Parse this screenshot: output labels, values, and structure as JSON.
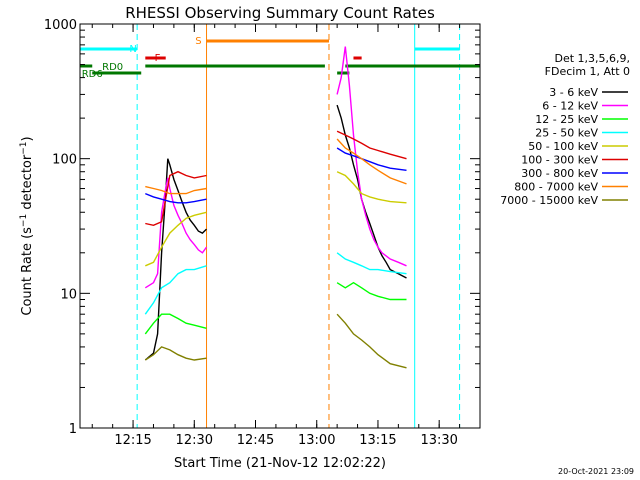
{
  "chart_data": {
    "type": "line",
    "title": "RHESSI Observing Summary Count Rates",
    "xlabel": "Start Time (21-Nov-12 12:02:22)",
    "ylabel": "Count Rate (s⁻¹ detector⁻¹)",
    "ylabel_main": "Count Rate (s",
    "ylabel_sup1": "−1",
    "ylabel_mid": " detector",
    "ylabel_sup2": "−1",
    "ylabel_end": ")",
    "y_scale": "log",
    "ylim": [
      1,
      1000
    ],
    "xlim": [
      "12:02",
      "13:40"
    ],
    "x_ticks": [
      "12:15",
      "12:30",
      "12:45",
      "13:00",
      "13:15",
      "13:30"
    ],
    "y_ticks": [
      {
        "value": 1,
        "label": "1"
      },
      {
        "value": 10,
        "label": "10"
      },
      {
        "value": 100,
        "label": "100"
      },
      {
        "value": 1000,
        "label": "1000"
      }
    ],
    "legend": {
      "placement": "right",
      "header": [
        "Det 1,3,5,6,9,",
        "FDecim 1, Att 0"
      ],
      "entries": [
        {
          "label": "3 - 6 keV",
          "color": "#000000"
        },
        {
          "label": "6 - 12 keV",
          "color": "#ff00ff"
        },
        {
          "label": "12 - 25 keV",
          "color": "#00ff00"
        },
        {
          "label": "25 - 50 keV",
          "color": "#00ffff"
        },
        {
          "label": "50 - 100 keV",
          "color": "#cccc00"
        },
        {
          "label": "100 - 300 keV",
          "color": "#dd0000"
        },
        {
          "label": "300 - 800 keV",
          "color": "#0000ff"
        },
        {
          "label": "800 - 7000 keV",
          "color": "#ff8000"
        },
        {
          "label": "7000 - 15000 keV",
          "color": "#808000"
        }
      ]
    },
    "flag_labels": [
      {
        "label": "N",
        "color": "#00ffff",
        "x": "12:15",
        "spans": [
          [
            "12:02",
            "12:16"
          ],
          [
            "13:24",
            "13:35"
          ]
        ]
      },
      {
        "label": "F",
        "color": "#dd0000",
        "x": "12:21",
        "spans": [
          [
            "12:18",
            "12:23"
          ],
          [
            "13:09",
            "13:11"
          ]
        ]
      },
      {
        "label": "S",
        "color": "#ff8000",
        "x": "12:31",
        "spans": [
          [
            "12:33",
            "13:03"
          ]
        ]
      },
      {
        "label": "RD0",
        "color": "#007700",
        "x": "12:10",
        "spans": [
          [
            "12:02",
            "12:05"
          ],
          [
            "12:18",
            "13:02"
          ],
          [
            "13:07",
            "13:40"
          ]
        ]
      },
      {
        "label": "RD6",
        "color": "#007700",
        "x": "12:05",
        "spans": [
          [
            "12:05",
            "12:17"
          ],
          [
            "13:05",
            "13:08"
          ]
        ]
      }
    ],
    "vertical_markers": [
      {
        "x": "12:02",
        "color": "#00ffff",
        "style": "solid"
      },
      {
        "x": "12:16",
        "color": "#00ffff",
        "style": "dashed"
      },
      {
        "x": "12:33",
        "color": "#ff8000",
        "style": "solid"
      },
      {
        "x": "13:03",
        "color": "#ff8000",
        "style": "dashed"
      },
      {
        "x": "13:24",
        "color": "#00ffff",
        "style": "solid"
      },
      {
        "x": "13:35",
        "color": "#00ffff",
        "style": "dashed"
      }
    ],
    "orbit_segments": [
      {
        "x_start": "12:18",
        "x_end": "12:33",
        "series": [
          {
            "label": "3 - 6 keV",
            "points": [
              [
                "12:18",
                3.2
              ],
              [
                "12:20",
                3.6
              ],
              [
                "12:21",
                5
              ],
              [
                "12:22",
                20
              ],
              [
                "12:23",
                55
              ],
              [
                "12:23.5",
                100
              ],
              [
                "12:24",
                90
              ],
              [
                "12:25",
                70
              ],
              [
                "12:26",
                58
              ],
              [
                "12:27",
                48
              ],
              [
                "12:28",
                40
              ],
              [
                "12:29",
                35
              ],
              [
                "12:30",
                32
              ],
              [
                "12:31",
                29
              ],
              [
                "12:32",
                28
              ],
              [
                "12:33",
                30
              ]
            ]
          },
          {
            "label": "6 - 12 keV",
            "points": [
              [
                "12:18",
                11
              ],
              [
                "12:20",
                12
              ],
              [
                "12:21",
                14
              ],
              [
                "12:22",
                40
              ],
              [
                "12:23",
                60
              ],
              [
                "12:23.5",
                72
              ],
              [
                "12:24",
                60
              ],
              [
                "12:25",
                45
              ],
              [
                "12:26",
                38
              ],
              [
                "12:27",
                33
              ],
              [
                "12:28",
                28
              ],
              [
                "12:29",
                25
              ],
              [
                "12:30",
                23
              ],
              [
                "12:31",
                21
              ],
              [
                "12:32",
                20
              ],
              [
                "12:33",
                22
              ]
            ]
          },
          {
            "label": "12 - 25 keV",
            "points": [
              [
                "12:18",
                5
              ],
              [
                "12:20",
                6
              ],
              [
                "12:22",
                7
              ],
              [
                "12:24",
                7
              ],
              [
                "12:26",
                6.5
              ],
              [
                "12:28",
                6
              ],
              [
                "12:30",
                5.8
              ],
              [
                "12:33",
                5.5
              ]
            ]
          },
          {
            "label": "25 - 50 keV",
            "points": [
              [
                "12:18",
                7
              ],
              [
                "12:20",
                8.5
              ],
              [
                "12:22",
                11
              ],
              [
                "12:24",
                12
              ],
              [
                "12:26",
                14
              ],
              [
                "12:28",
                15
              ],
              [
                "12:30",
                15
              ],
              [
                "12:33",
                16
              ]
            ]
          },
          {
            "label": "50 - 100 keV",
            "points": [
              [
                "12:18",
                16
              ],
              [
                "12:20",
                17
              ],
              [
                "12:22",
                22
              ],
              [
                "12:24",
                28
              ],
              [
                "12:26",
                32
              ],
              [
                "12:28",
                36
              ],
              [
                "12:30",
                38
              ],
              [
                "12:33",
                40
              ]
            ]
          },
          {
            "label": "100 - 300 keV",
            "points": [
              [
                "12:18",
                33
              ],
              [
                "12:20",
                32
              ],
              [
                "12:22",
                34
              ],
              [
                "12:24",
                75
              ],
              [
                "12:26",
                80
              ],
              [
                "12:28",
                75
              ],
              [
                "12:30",
                72
              ],
              [
                "12:33",
                75
              ]
            ]
          },
          {
            "label": "300 - 800 keV",
            "points": [
              [
                "12:18",
                55
              ],
              [
                "12:20",
                52
              ],
              [
                "12:22",
                50
              ],
              [
                "12:24",
                48
              ],
              [
                "12:26",
                47
              ],
              [
                "12:28",
                47
              ],
              [
                "12:30",
                48
              ],
              [
                "12:33",
                50
              ]
            ]
          },
          {
            "label": "800 - 7000 keV",
            "points": [
              [
                "12:18",
                62
              ],
              [
                "12:20",
                60
              ],
              [
                "12:22",
                58
              ],
              [
                "12:24",
                55
              ],
              [
                "12:26",
                55
              ],
              [
                "12:28",
                55
              ],
              [
                "12:30",
                58
              ],
              [
                "12:33",
                60
              ]
            ]
          },
          {
            "label": "7000 - 15000 keV",
            "points": [
              [
                "12:18",
                3.2
              ],
              [
                "12:20",
                3.5
              ],
              [
                "12:22",
                4
              ],
              [
                "12:24",
                3.8
              ],
              [
                "12:26",
                3.5
              ],
              [
                "12:28",
                3.3
              ],
              [
                "12:30",
                3.2
              ],
              [
                "12:33",
                3.3
              ]
            ]
          }
        ]
      },
      {
        "x_start": "13:05",
        "x_end": "13:22",
        "series": [
          {
            "label": "3 - 6 keV",
            "points": [
              [
                "13:05",
                250
              ],
              [
                "13:06",
                200
              ],
              [
                "13:07",
                150
              ],
              [
                "13:08",
                120
              ],
              [
                "13:09",
                90
              ],
              [
                "13:10",
                70
              ],
              [
                "13:11",
                50
              ],
              [
                "13:12",
                40
              ],
              [
                "13:13",
                33
              ],
              [
                "13:14",
                27
              ],
              [
                "13:15",
                22
              ],
              [
                "13:16",
                19
              ],
              [
                "13:17",
                17
              ],
              [
                "13:18",
                15
              ],
              [
                "13:20",
                14
              ],
              [
                "13:22",
                13
              ]
            ]
          },
          {
            "label": "6 - 12 keV",
            "points": [
              [
                "13:05",
                300
              ],
              [
                "13:06",
                400
              ],
              [
                "13:07",
                680
              ],
              [
                "13:08",
                350
              ],
              [
                "13:09",
                150
              ],
              [
                "13:10",
                80
              ],
              [
                "13:11",
                50
              ],
              [
                "13:12",
                38
              ],
              [
                "13:13",
                30
              ],
              [
                "13:14",
                25
              ],
              [
                "13:15",
                22
              ],
              [
                "13:16",
                20
              ],
              [
                "13:18",
                18
              ],
              [
                "13:20",
                17
              ],
              [
                "13:22",
                16
              ]
            ]
          },
          {
            "label": "12 - 25 keV",
            "points": [
              [
                "13:05",
                12
              ],
              [
                "13:07",
                11
              ],
              [
                "13:09",
                12
              ],
              [
                "13:11",
                11
              ],
              [
                "13:13",
                10
              ],
              [
                "13:15",
                9.5
              ],
              [
                "13:18",
                9
              ],
              [
                "13:22",
                9
              ]
            ]
          },
          {
            "label": "25 - 50 keV",
            "points": [
              [
                "13:05",
                20
              ],
              [
                "13:07",
                18
              ],
              [
                "13:09",
                17
              ],
              [
                "13:11",
                16
              ],
              [
                "13:13",
                15
              ],
              [
                "13:15",
                15
              ],
              [
                "13:18",
                14.5
              ],
              [
                "13:22",
                14
              ]
            ]
          },
          {
            "label": "50 - 100 keV",
            "points": [
              [
                "13:05",
                80
              ],
              [
                "13:07",
                75
              ],
              [
                "13:09",
                65
              ],
              [
                "13:11",
                55
              ],
              [
                "13:13",
                52
              ],
              [
                "13:15",
                50
              ],
              [
                "13:18",
                48
              ],
              [
                "13:22",
                47
              ]
            ]
          },
          {
            "label": "100 - 300 keV",
            "points": [
              [
                "13:05",
                160
              ],
              [
                "13:07",
                150
              ],
              [
                "13:09",
                140
              ],
              [
                "13:11",
                130
              ],
              [
                "13:13",
                120
              ],
              [
                "13:15",
                115
              ],
              [
                "13:18",
                108
              ],
              [
                "13:22",
                100
              ]
            ]
          },
          {
            "label": "300 - 800 keV",
            "points": [
              [
                "13:05",
                120
              ],
              [
                "13:07",
                110
              ],
              [
                "13:09",
                105
              ],
              [
                "13:11",
                100
              ],
              [
                "13:13",
                95
              ],
              [
                "13:15",
                90
              ],
              [
                "13:18",
                85
              ],
              [
                "13:22",
                82
              ]
            ]
          },
          {
            "label": "800 - 7000 keV",
            "points": [
              [
                "13:05",
                140
              ],
              [
                "13:07",
                120
              ],
              [
                "13:09",
                110
              ],
              [
                "13:11",
                100
              ],
              [
                "13:13",
                90
              ],
              [
                "13:15",
                82
              ],
              [
                "13:18",
                72
              ],
              [
                "13:22",
                65
              ]
            ]
          },
          {
            "label": "7000 - 15000 keV",
            "points": [
              [
                "13:05",
                7
              ],
              [
                "13:07",
                6
              ],
              [
                "13:09",
                5
              ],
              [
                "13:11",
                4.5
              ],
              [
                "13:13",
                4
              ],
              [
                "13:15",
                3.5
              ],
              [
                "13:18",
                3
              ],
              [
                "13:22",
                2.8
              ]
            ]
          }
        ]
      }
    ],
    "footer_date": "20-Oct-2021 23:09"
  }
}
